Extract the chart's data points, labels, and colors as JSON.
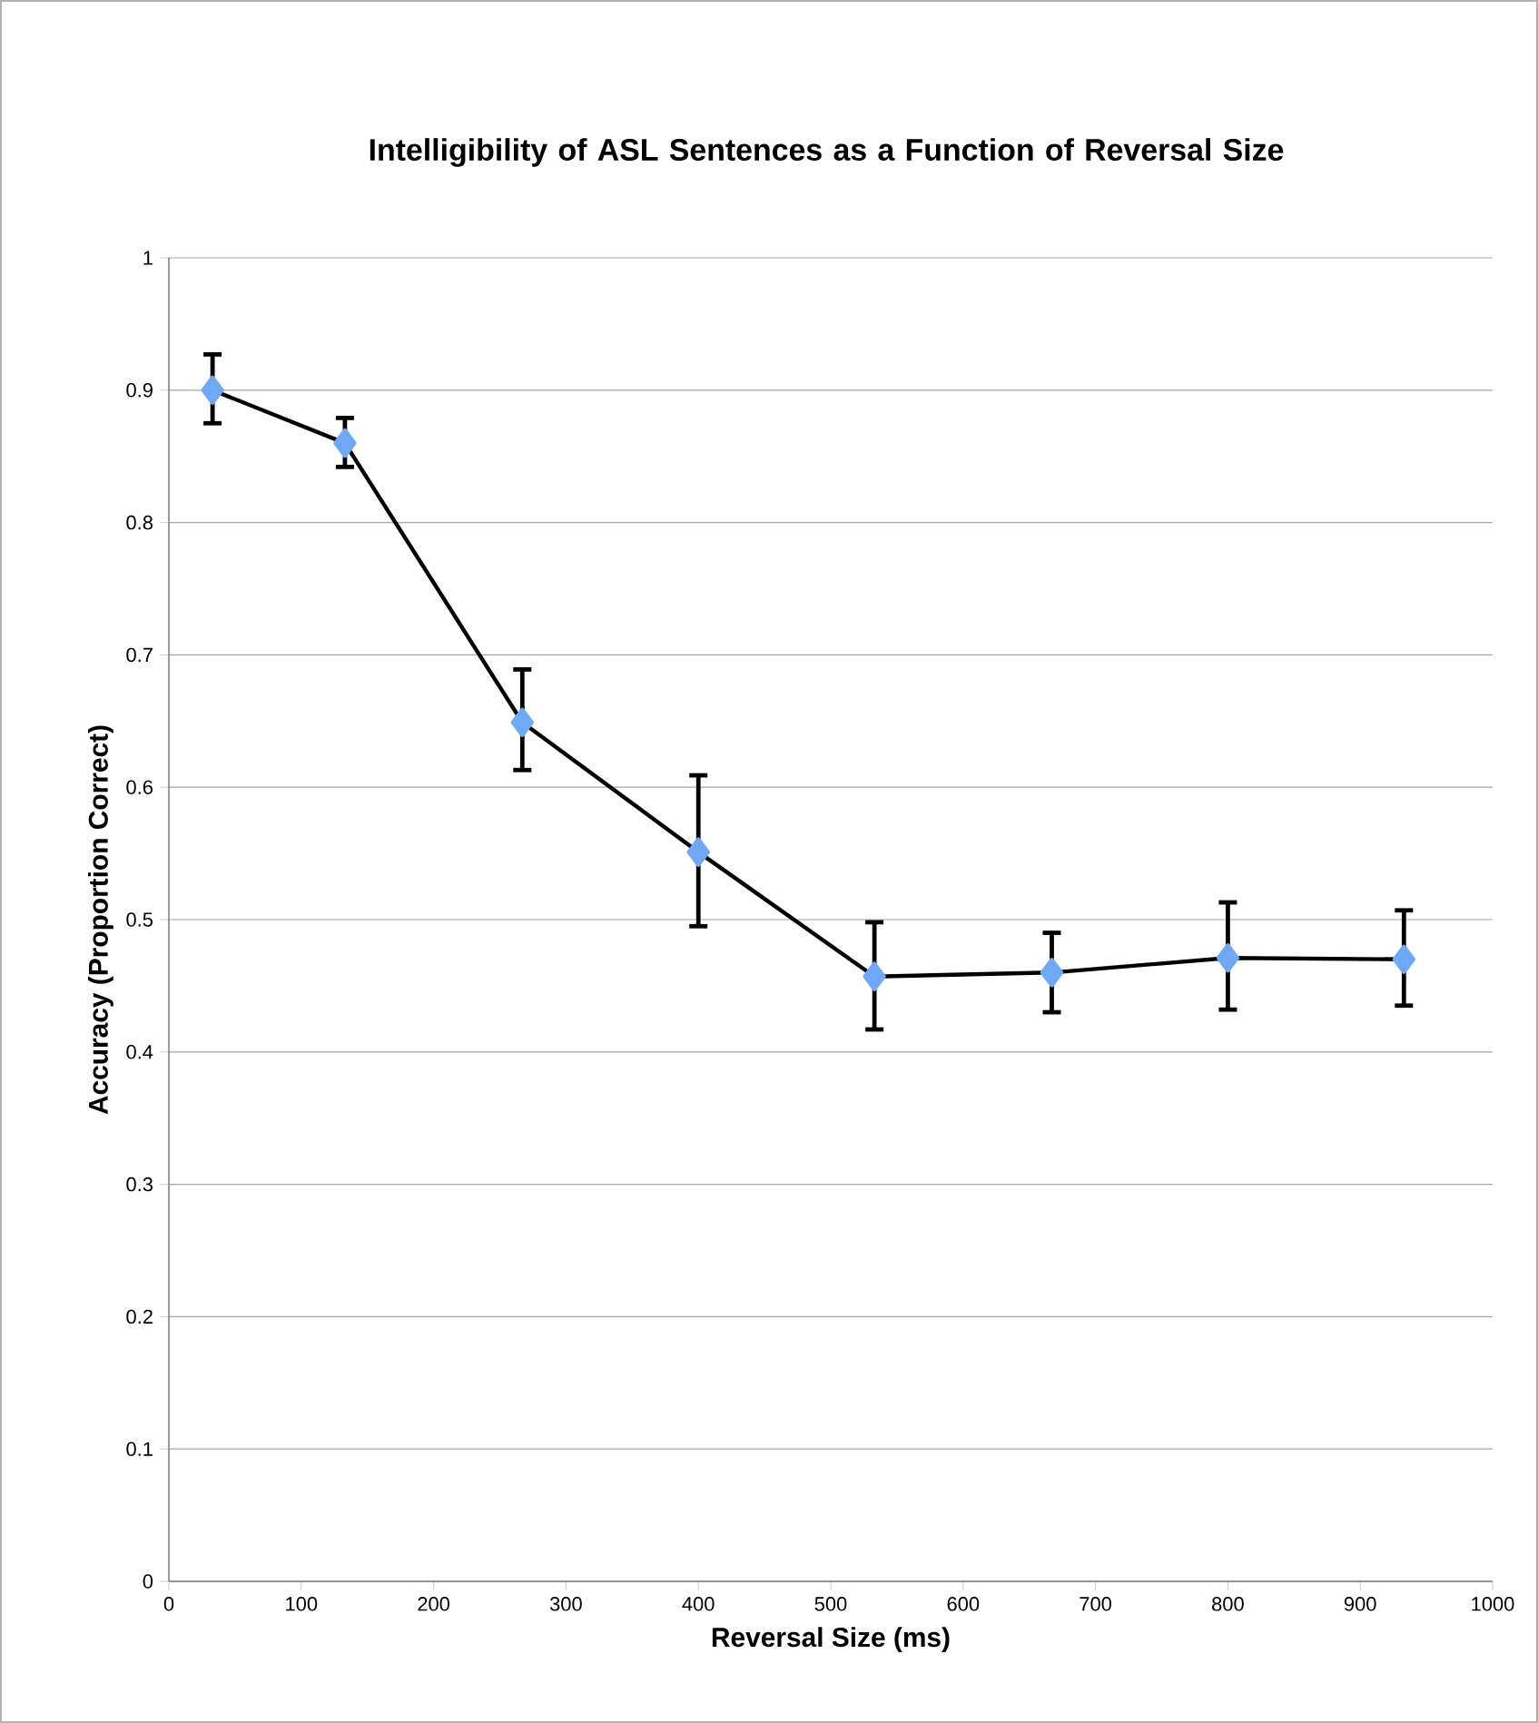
{
  "chart_data": {
    "type": "line",
    "title": "Intelligibility of ASL Sentences as a Function of Reversal Size",
    "xlabel": "Reversal Size (ms)",
    "ylabel": "Accuracy (Proportion Correct)",
    "x": [
      33,
      133,
      267,
      400,
      533,
      667,
      800,
      933
    ],
    "series": [
      {
        "color": "#6fa8f5",
        "values": [
          0.9,
          0.86,
          0.649,
          0.551,
          0.457,
          0.46,
          0.471,
          0.47
        ],
        "errors": [
          [
            0.875,
            0.927
          ],
          [
            0.842,
            0.879
          ],
          [
            0.613,
            0.689
          ],
          [
            0.495,
            0.609
          ],
          [
            0.417,
            0.498
          ],
          [
            0.43,
            0.49
          ],
          [
            0.432,
            0.513
          ],
          [
            0.435,
            0.507
          ]
        ]
      }
    ],
    "xlim": [
      0,
      1000
    ],
    "xticks": [
      0,
      100,
      200,
      300,
      400,
      500,
      600,
      700,
      800,
      900,
      1000
    ],
    "ylim": [
      0,
      1
    ],
    "yticks": [
      0,
      0.1,
      0.2,
      0.3,
      0.4,
      0.5,
      0.6,
      0.7,
      0.8,
      0.9,
      1
    ],
    "grid": "y",
    "marker": "diamond",
    "line_style": "solid"
  }
}
